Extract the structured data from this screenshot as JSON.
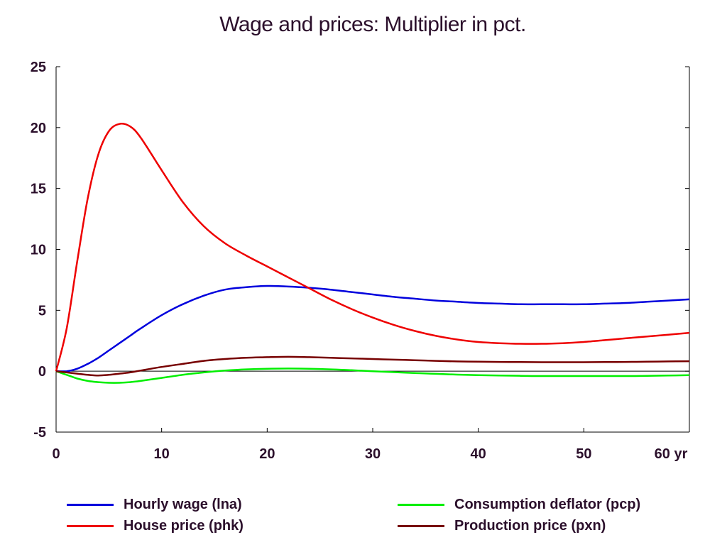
{
  "chart_data": {
    "type": "line",
    "title": "Wage and prices: Multiplier in pct.",
    "x_unit": "yr",
    "xlim": [
      0,
      60
    ],
    "ylim": [
      -5,
      25
    ],
    "x_ticks": [
      0,
      10,
      20,
      30,
      40,
      50,
      60
    ],
    "y_ticks": [
      -5,
      0,
      5,
      10,
      15,
      20,
      25
    ],
    "grid": false,
    "legend_position": "bottom",
    "x": [
      0,
      1,
      2,
      3,
      4,
      5,
      6,
      7,
      8,
      10,
      12,
      14,
      16,
      18,
      20,
      22,
      24,
      26,
      28,
      30,
      32,
      34,
      36,
      38,
      40,
      42,
      44,
      46,
      48,
      50,
      52,
      54,
      56,
      58,
      60
    ],
    "series": [
      {
        "name": "Hourly wage (lna)",
        "color": "#0000dd",
        "values": [
          0,
          0.0,
          0.2,
          0.6,
          1.1,
          1.7,
          2.3,
          2.9,
          3.5,
          4.6,
          5.5,
          6.2,
          6.7,
          6.9,
          7.0,
          6.95,
          6.85,
          6.7,
          6.5,
          6.3,
          6.1,
          5.95,
          5.8,
          5.7,
          5.6,
          5.55,
          5.5,
          5.5,
          5.5,
          5.5,
          5.55,
          5.6,
          5.7,
          5.8,
          5.9
        ]
      },
      {
        "name": "Consumption deflator (pcp)",
        "color": "#00ee00",
        "values": [
          0,
          -0.3,
          -0.6,
          -0.8,
          -0.9,
          -0.95,
          -0.95,
          -0.9,
          -0.8,
          -0.55,
          -0.3,
          -0.1,
          0.05,
          0.15,
          0.2,
          0.22,
          0.2,
          0.15,
          0.08,
          0.0,
          -0.08,
          -0.15,
          -0.22,
          -0.28,
          -0.32,
          -0.35,
          -0.38,
          -0.4,
          -0.4,
          -0.4,
          -0.4,
          -0.4,
          -0.38,
          -0.36,
          -0.33
        ]
      },
      {
        "name": "House price (phk)",
        "color": "#ee0000",
        "values": [
          0,
          3.5,
          9.0,
          14.2,
          17.8,
          19.7,
          20.3,
          20.1,
          19.2,
          16.5,
          13.9,
          11.9,
          10.5,
          9.5,
          8.6,
          7.7,
          6.8,
          5.9,
          5.1,
          4.4,
          3.8,
          3.3,
          2.9,
          2.6,
          2.4,
          2.3,
          2.25,
          2.25,
          2.3,
          2.4,
          2.55,
          2.7,
          2.85,
          3.0,
          3.15
        ]
      },
      {
        "name": "Production price (pxn)",
        "color": "#770000",
        "values": [
          0,
          -0.1,
          -0.2,
          -0.3,
          -0.35,
          -0.3,
          -0.2,
          -0.1,
          0.05,
          0.35,
          0.6,
          0.85,
          1.0,
          1.1,
          1.15,
          1.18,
          1.15,
          1.1,
          1.05,
          1.0,
          0.95,
          0.9,
          0.85,
          0.8,
          0.78,
          0.76,
          0.75,
          0.74,
          0.74,
          0.74,
          0.75,
          0.76,
          0.78,
          0.8,
          0.82
        ]
      }
    ]
  },
  "legend": {
    "items": [
      {
        "label": "Hourly wage (lna)",
        "color": "#0000dd"
      },
      {
        "label": "House price (phk)",
        "color": "#ee0000"
      },
      {
        "label": "Consumption deflator (pcp)",
        "color": "#00ee00"
      },
      {
        "label": "Production price (pxn)",
        "color": "#770000"
      }
    ]
  }
}
